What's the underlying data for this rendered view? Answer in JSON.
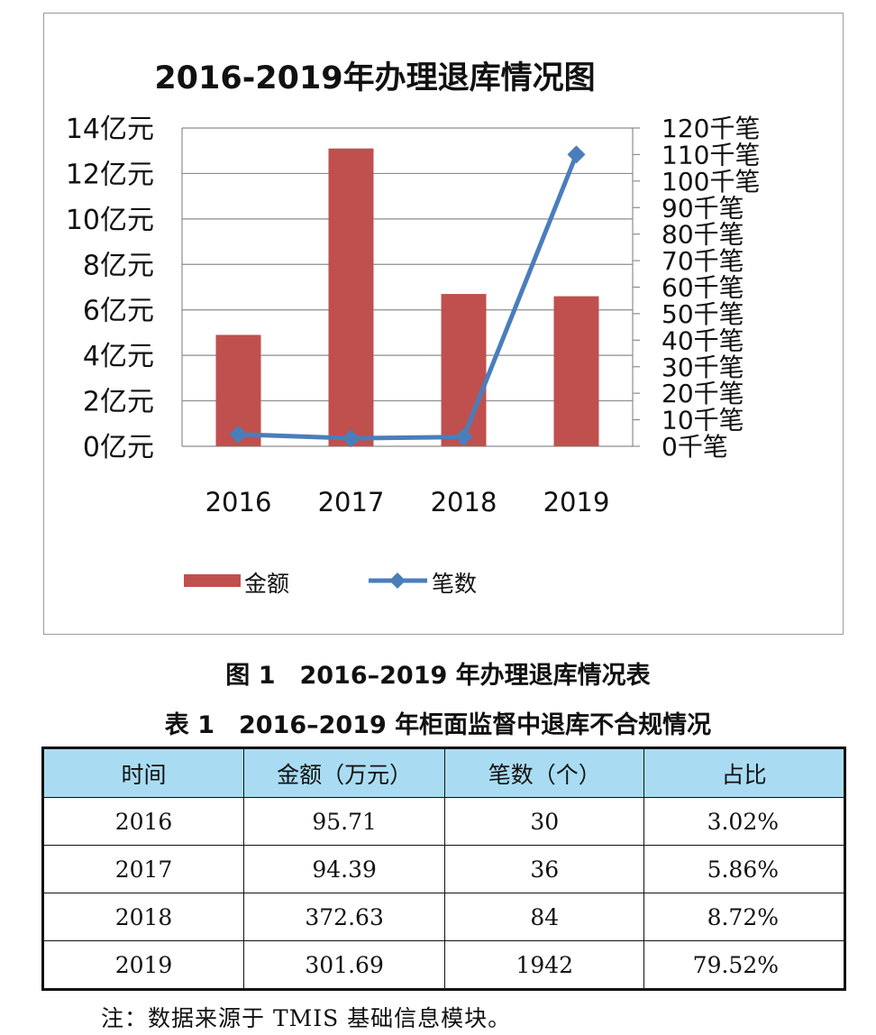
{
  "chart_data": {
    "type": "bar",
    "title": "2016-2019年办理退库情况图",
    "categories": [
      "2016",
      "2017",
      "2018",
      "2019"
    ],
    "series": [
      {
        "name": "金额",
        "type": "bar",
        "axis": "left",
        "color": "#bf504d",
        "values": [
          4.9,
          13.1,
          6.7,
          6.6
        ]
      },
      {
        "name": "笔数",
        "type": "line",
        "axis": "right",
        "color": "#4a7ebb",
        "values": [
          4.5,
          3.0,
          3.5,
          110
        ]
      }
    ],
    "y_left": {
      "min": 0,
      "max": 14,
      "step": 2,
      "tick_labels": [
        "0亿元",
        "2亿元",
        "4亿元",
        "6亿元",
        "8亿元",
        "10亿元",
        "12亿元",
        "14亿元"
      ]
    },
    "y_right": {
      "min": 0,
      "max": 120,
      "step": 10,
      "tick_labels": [
        "0千笔",
        "10千笔",
        "20千笔",
        "30千笔",
        "40千笔",
        "50千笔",
        "60千笔",
        "70千笔",
        "80千笔",
        "90千笔",
        "100千笔",
        "110千笔",
        "120千笔"
      ]
    },
    "grid": true,
    "legend_position": "bottom"
  },
  "figure_caption": "图 1　2016–2019 年办理退库情况表",
  "table": {
    "caption": "表 1　2016–2019 年柜面监督中退库不合规情况",
    "headers": [
      "时间",
      "金额（万元）",
      "笔数（个）",
      "占比"
    ],
    "rows": [
      [
        "2016",
        "95.71",
        "30",
        "3.02%"
      ],
      [
        "2017",
        "94.39",
        "36",
        "5.86%"
      ],
      [
        "2018",
        "372.63",
        "84",
        "8.72%"
      ],
      [
        "2019",
        "301.69",
        "1942",
        "79.52%"
      ]
    ]
  },
  "note": "注：数据来源于 TMIS 基础信息模块。"
}
